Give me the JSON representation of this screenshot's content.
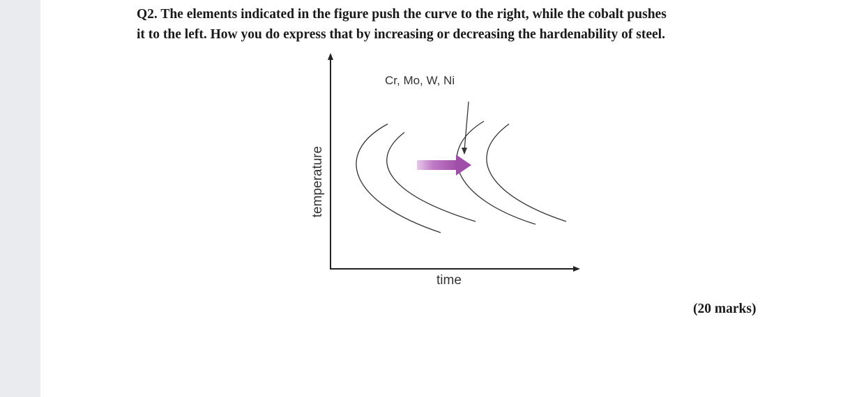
{
  "question": {
    "line1": "Q2. The elements indicated in the figure push the curve to the right, while the cobalt pushes",
    "line2": "it to the left. How you do express that by increasing or decreasing the hardenability of steel."
  },
  "figure": {
    "elements_label": "Cr, Mo, W, Ni",
    "x_axis_label": "time",
    "y_axis_label": "temperature",
    "arrow_color": "#b064b8"
  },
  "marks": "(20 marks)"
}
